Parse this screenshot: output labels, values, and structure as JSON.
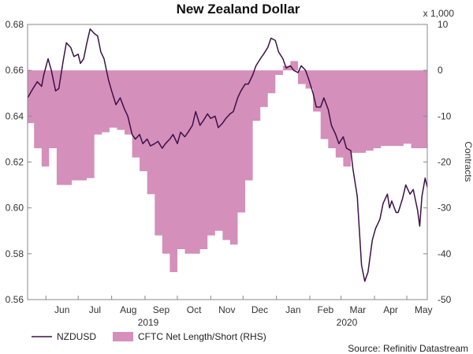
{
  "chart_data": {
    "type": "line+area",
    "title": "New Zealand Dollar",
    "source": "Source: Refinitiv Datastream",
    "left_axis": {
      "min": 0.56,
      "max": 0.68,
      "ticks": [
        "0.56",
        "0.58",
        "0.60",
        "0.62",
        "0.64",
        "0.66",
        "0.68"
      ]
    },
    "right_axis": {
      "label": "Contracts",
      "multiplier": "x 1,000",
      "min": -50,
      "max": 10,
      "ticks": [
        "-50",
        "-40",
        "-30",
        "-20",
        "-10",
        "0",
        "10"
      ]
    },
    "months": [
      "Jun",
      "Jul",
      "Aug",
      "Sep",
      "Oct",
      "Nov",
      "Dec",
      "Jan",
      "Feb",
      "Mar",
      "Apr",
      "May"
    ],
    "years": [
      "2019",
      "2020"
    ],
    "x_range": [
      "2019-05-15",
      "2020-05-20"
    ],
    "legend": [
      "NZDUSD",
      "CFTC Net Length/Short (RHS)"
    ],
    "colors": {
      "line": "#3d1048",
      "area": "#d48fbb",
      "axis": "#888888"
    },
    "series": [
      {
        "name": "CFTC Net Length/Short (RHS)",
        "kind": "step-area",
        "points": [
          [
            "2019-05-15",
            -11.5
          ],
          [
            "2019-05-21",
            -17
          ],
          [
            "2019-05-28",
            -21
          ],
          [
            "2019-06-04",
            -17
          ],
          [
            "2019-06-11",
            -25
          ],
          [
            "2019-06-18",
            -25
          ],
          [
            "2019-06-25",
            -24
          ],
          [
            "2019-07-02",
            -24
          ],
          [
            "2019-07-09",
            -23.5
          ],
          [
            "2019-07-16",
            -14
          ],
          [
            "2019-07-23",
            -13.5
          ],
          [
            "2019-07-30",
            -12.5
          ],
          [
            "2019-08-06",
            -13
          ],
          [
            "2019-08-13",
            -14
          ],
          [
            "2019-08-20",
            -19
          ],
          [
            "2019-08-27",
            -22
          ],
          [
            "2019-09-03",
            -27
          ],
          [
            "2019-09-10",
            -36
          ],
          [
            "2019-09-17",
            -40
          ],
          [
            "2019-09-24",
            -44
          ],
          [
            "2019-10-01",
            -39
          ],
          [
            "2019-10-08",
            -40
          ],
          [
            "2019-10-15",
            -40
          ],
          [
            "2019-10-22",
            -39
          ],
          [
            "2019-10-29",
            -36
          ],
          [
            "2019-11-05",
            -35
          ],
          [
            "2019-11-12",
            -37
          ],
          [
            "2019-11-19",
            -38
          ],
          [
            "2019-11-26",
            -31
          ],
          [
            "2019-12-03",
            -24
          ],
          [
            "2019-12-10",
            -11
          ],
          [
            "2019-12-17",
            -8
          ],
          [
            "2019-12-24",
            -5
          ],
          [
            "2019-12-31",
            -1
          ],
          [
            "2020-01-07",
            1
          ],
          [
            "2020-01-14",
            2
          ],
          [
            "2020-01-21",
            -3
          ],
          [
            "2020-01-28",
            -4
          ],
          [
            "2020-02-04",
            -9
          ],
          [
            "2020-02-11",
            -15
          ],
          [
            "2020-02-18",
            -17
          ],
          [
            "2020-02-25",
            -19
          ],
          [
            "2020-03-03",
            -21
          ],
          [
            "2020-03-10",
            -18
          ],
          [
            "2020-03-17",
            -18
          ],
          [
            "2020-03-24",
            -17.5
          ],
          [
            "2020-03-31",
            -17
          ],
          [
            "2020-04-07",
            -16.5
          ],
          [
            "2020-04-14",
            -16.5
          ],
          [
            "2020-04-21",
            -16.5
          ],
          [
            "2020-04-28",
            -16
          ],
          [
            "2020-05-05",
            -17
          ],
          [
            "2020-05-12",
            -17
          ],
          [
            "2020-05-19",
            -17
          ]
        ]
      },
      {
        "name": "NZDUSD",
        "kind": "line",
        "points": [
          [
            "2019-05-15",
            0.648
          ],
          [
            "2019-05-20",
            0.652
          ],
          [
            "2019-05-24",
            0.655
          ],
          [
            "2019-05-28",
            0.653
          ],
          [
            "2019-05-30",
            0.658
          ],
          [
            "2019-06-03",
            0.665
          ],
          [
            "2019-06-06",
            0.66
          ],
          [
            "2019-06-10",
            0.651
          ],
          [
            "2019-06-13",
            0.652
          ],
          [
            "2019-06-17",
            0.664
          ],
          [
            "2019-06-20",
            0.672
          ],
          [
            "2019-06-24",
            0.67
          ],
          [
            "2019-06-27",
            0.666
          ],
          [
            "2019-07-01",
            0.667
          ],
          [
            "2019-07-03",
            0.663
          ],
          [
            "2019-07-06",
            0.665
          ],
          [
            "2019-07-09",
            0.672
          ],
          [
            "2019-07-12",
            0.678
          ],
          [
            "2019-07-16",
            0.676
          ],
          [
            "2019-07-19",
            0.675
          ],
          [
            "2019-07-22",
            0.668
          ],
          [
            "2019-07-25",
            0.665
          ],
          [
            "2019-07-29",
            0.656
          ],
          [
            "2019-08-01",
            0.651
          ],
          [
            "2019-08-05",
            0.645
          ],
          [
            "2019-08-09",
            0.648
          ],
          [
            "2019-08-13",
            0.643
          ],
          [
            "2019-08-16",
            0.64
          ],
          [
            "2019-08-20",
            0.632
          ],
          [
            "2019-08-23",
            0.63
          ],
          [
            "2019-08-27",
            0.632
          ],
          [
            "2019-08-30",
            0.628
          ],
          [
            "2019-09-03",
            0.63
          ],
          [
            "2019-09-06",
            0.627
          ],
          [
            "2019-09-10",
            0.628
          ],
          [
            "2019-09-13",
            0.629
          ],
          [
            "2019-09-17",
            0.626
          ],
          [
            "2019-09-20",
            0.628
          ],
          [
            "2019-09-24",
            0.63
          ],
          [
            "2019-09-27",
            0.632
          ],
          [
            "2019-10-01",
            0.628
          ],
          [
            "2019-10-04",
            0.633
          ],
          [
            "2019-10-08",
            0.631
          ],
          [
            "2019-10-11",
            0.633
          ],
          [
            "2019-10-15",
            0.636
          ],
          [
            "2019-10-18",
            0.642
          ],
          [
            "2019-10-22",
            0.636
          ],
          [
            "2019-10-25",
            0.638
          ],
          [
            "2019-10-29",
            0.641
          ],
          [
            "2019-11-01",
            0.639
          ],
          [
            "2019-11-05",
            0.64
          ],
          [
            "2019-11-08",
            0.635
          ],
          [
            "2019-11-12",
            0.637
          ],
          [
            "2019-11-15",
            0.639
          ],
          [
            "2019-11-19",
            0.641
          ],
          [
            "2019-11-22",
            0.642
          ],
          [
            "2019-11-26",
            0.648
          ],
          [
            "2019-11-29",
            0.651
          ],
          [
            "2019-12-03",
            0.654
          ],
          [
            "2019-12-06",
            0.654
          ],
          [
            "2019-12-10",
            0.658
          ],
          [
            "2019-12-13",
            0.662
          ],
          [
            "2019-12-17",
            0.665
          ],
          [
            "2019-12-20",
            0.667
          ],
          [
            "2019-12-24",
            0.67
          ],
          [
            "2019-12-27",
            0.674
          ],
          [
            "2019-12-31",
            0.673
          ],
          [
            "2020-01-03",
            0.668
          ],
          [
            "2020-01-07",
            0.665
          ],
          [
            "2020-01-10",
            0.661
          ],
          [
            "2020-01-14",
            0.662
          ],
          [
            "2020-01-17",
            0.66
          ],
          [
            "2020-01-21",
            0.659
          ],
          [
            "2020-01-24",
            0.662
          ],
          [
            "2020-01-28",
            0.66
          ],
          [
            "2020-01-31",
            0.656
          ],
          [
            "2020-02-04",
            0.65
          ],
          [
            "2020-02-07",
            0.644
          ],
          [
            "2020-02-11",
            0.644
          ],
          [
            "2020-02-14",
            0.648
          ],
          [
            "2020-02-18",
            0.643
          ],
          [
            "2020-02-21",
            0.636
          ],
          [
            "2020-02-25",
            0.632
          ],
          [
            "2020-02-28",
            0.628
          ],
          [
            "2020-03-03",
            0.631
          ],
          [
            "2020-03-06",
            0.626
          ],
          [
            "2020-03-10",
            0.625
          ],
          [
            "2020-03-12",
            0.617
          ],
          [
            "2020-03-16",
            0.605
          ],
          [
            "2020-03-18",
            0.59
          ],
          [
            "2020-03-20",
            0.575
          ],
          [
            "2020-03-23",
            0.568
          ],
          [
            "2020-03-26",
            0.572
          ],
          [
            "2020-03-30",
            0.586
          ],
          [
            "2020-04-02",
            0.591
          ],
          [
            "2020-04-06",
            0.595
          ],
          [
            "2020-04-09",
            0.602
          ],
          [
            "2020-04-13",
            0.606
          ],
          [
            "2020-04-15",
            0.6
          ],
          [
            "2020-04-17",
            0.603
          ],
          [
            "2020-04-21",
            0.598
          ],
          [
            "2020-04-23",
            0.598
          ],
          [
            "2020-04-27",
            0.604
          ],
          [
            "2020-04-30",
            0.61
          ],
          [
            "2020-05-04",
            0.606
          ],
          [
            "2020-05-07",
            0.608
          ],
          [
            "2020-05-11",
            0.599
          ],
          [
            "2020-05-13",
            0.592
          ],
          [
            "2020-05-15",
            0.605
          ],
          [
            "2020-05-18",
            0.613
          ],
          [
            "2020-05-20",
            0.609
          ]
        ]
      }
    ]
  }
}
